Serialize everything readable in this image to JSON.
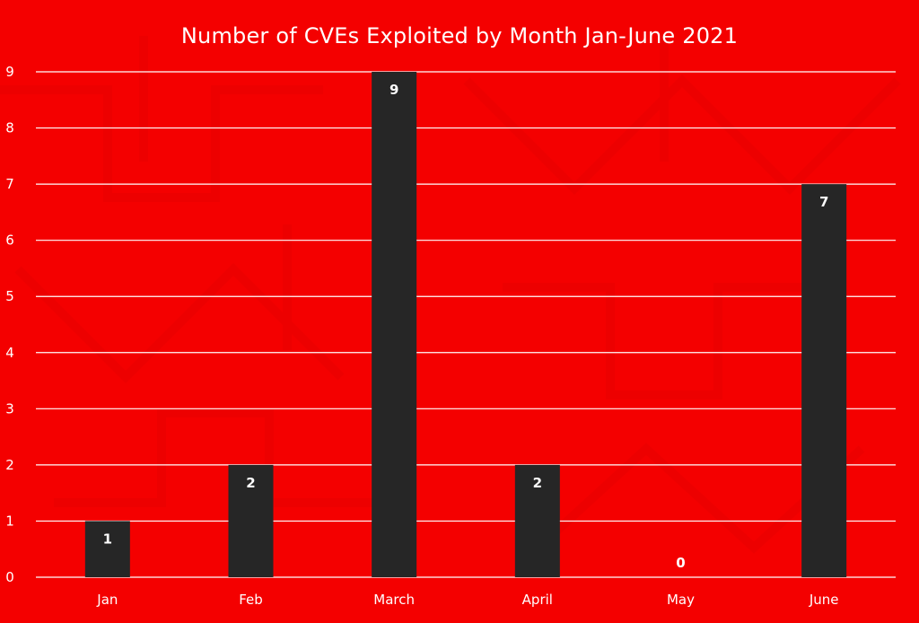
{
  "colors": {
    "background": "#f40000",
    "bar": "#262626",
    "gridline": "#ffffff",
    "text": "#ffffff"
  },
  "chart_data": {
    "type": "bar",
    "title": "Number of CVEs Exploited by Month Jan-June 2021",
    "xlabel": "",
    "ylabel": "",
    "categories": [
      "Jan",
      "Feb",
      "March",
      "April",
      "May",
      "June"
    ],
    "values": [
      1,
      2,
      9,
      2,
      0,
      7
    ],
    "data_labels": [
      "1",
      "2",
      "9",
      "2",
      "0",
      "7"
    ],
    "ylim": [
      0,
      9
    ],
    "yticks": [
      "0",
      "1",
      "2",
      "3",
      "4",
      "5",
      "6",
      "7",
      "8",
      "9"
    ],
    "grid": true,
    "legend": "none"
  }
}
